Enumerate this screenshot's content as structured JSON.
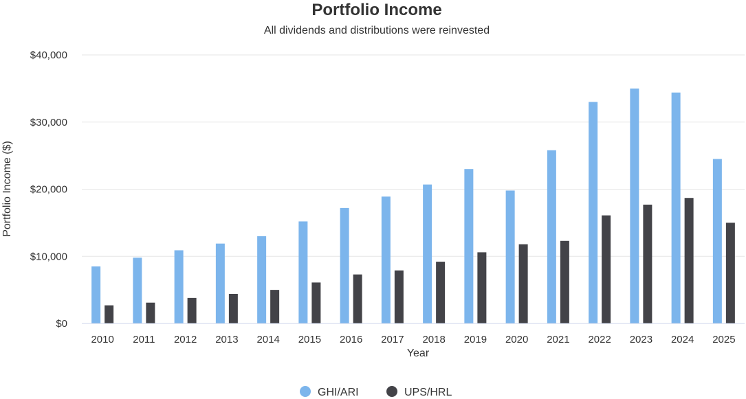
{
  "chart_data": {
    "type": "bar",
    "title": "Portfolio Income",
    "subtitle": "All dividends and distributions were reinvested",
    "xlabel": "Year",
    "ylabel": "Portfolio Income ($)",
    "categories": [
      "2010",
      "2011",
      "2012",
      "2013",
      "2014",
      "2015",
      "2016",
      "2017",
      "2018",
      "2019",
      "2020",
      "2021",
      "2022",
      "2023",
      "2024",
      "2025"
    ],
    "series": [
      {
        "name": "GHI/ARI",
        "color": "#7cb5ec",
        "values": [
          8500,
          9800,
          10900,
          11900,
          13000,
          15200,
          17200,
          18900,
          20700,
          23000,
          19800,
          25800,
          33000,
          35000,
          34400,
          24500
        ]
      },
      {
        "name": "UPS/HRL",
        "color": "#434348",
        "values": [
          2700,
          3100,
          3800,
          4400,
          5000,
          6100,
          7300,
          7900,
          9200,
          10600,
          11800,
          12300,
          16100,
          17700,
          18700,
          15000
        ]
      }
    ],
    "ylim": [
      0,
      40000
    ],
    "yticks": [
      0,
      10000,
      20000,
      30000,
      40000
    ],
    "ytick_labels": [
      "$0",
      "$10,000",
      "$20,000",
      "$30,000",
      "$40,000"
    ],
    "grid": true,
    "legend_position": "bottom-center"
  }
}
